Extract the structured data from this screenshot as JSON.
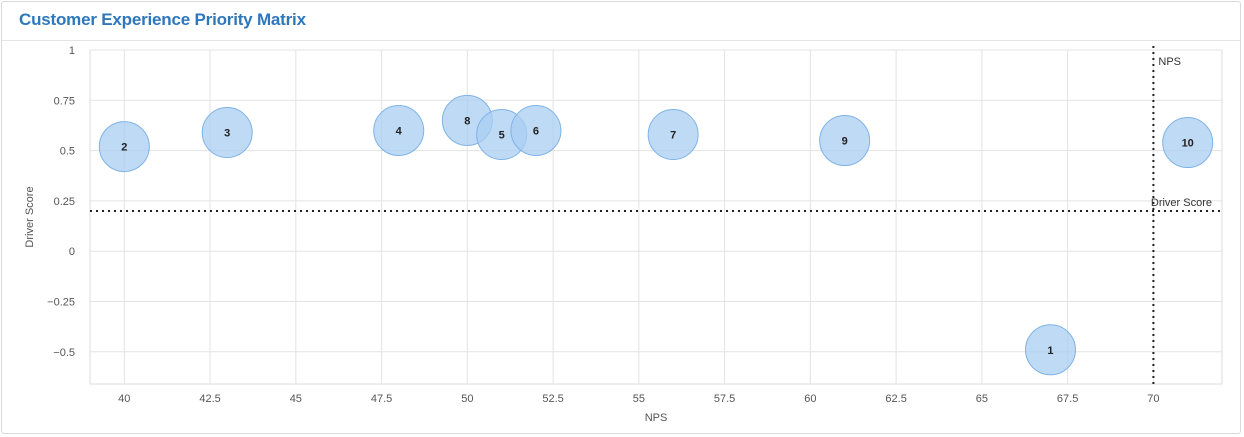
{
  "panel": {
    "title": "Customer Experience Priority Matrix"
  },
  "chart_data": {
    "type": "scatter",
    "variant": "bubble",
    "title": "Customer Experience Priority Matrix",
    "xlabel": "NPS",
    "ylabel": "Driver Score",
    "xlim": [
      39,
      72
    ],
    "ylim": [
      -0.66,
      1
    ],
    "x_ticks": [
      40,
      42.5,
      45,
      47.5,
      50,
      52.5,
      55,
      57.5,
      60,
      62.5,
      65,
      67.5,
      70
    ],
    "x_tick_labels": [
      "40",
      "42.5",
      "45",
      "47.5",
      "50",
      "52.5",
      "55",
      "57.5",
      "60",
      "62.5",
      "65",
      "67.5",
      "70"
    ],
    "y_ticks": [
      1,
      0.75,
      0.5,
      0.25,
      0,
      -0.25,
      -0.5
    ],
    "y_tick_labels": [
      "1",
      "0.75",
      "0.5",
      "0.25",
      "0",
      "−0.25",
      "−0.5"
    ],
    "grid": true,
    "bubble_color": "#a9cdf2",
    "bubble_edge_color": "#7fb3e6",
    "points": [
      {
        "label": "2",
        "x": 40,
        "y": 0.52
      },
      {
        "label": "3",
        "x": 43,
        "y": 0.59
      },
      {
        "label": "4",
        "x": 48,
        "y": 0.6
      },
      {
        "label": "8",
        "x": 50,
        "y": 0.65
      },
      {
        "label": "5",
        "x": 51,
        "y": 0.58
      },
      {
        "label": "6",
        "x": 52,
        "y": 0.6
      },
      {
        "label": "7",
        "x": 56,
        "y": 0.58
      },
      {
        "label": "9",
        "x": 61,
        "y": 0.55
      },
      {
        "label": "10",
        "x": 71,
        "y": 0.54
      },
      {
        "label": "1",
        "x": 67,
        "y": -0.49
      }
    ],
    "reference_lines": [
      {
        "axis": "x",
        "value": 70,
        "label": "NPS"
      },
      {
        "axis": "y",
        "value": 0.2,
        "label": "Driver Score"
      }
    ]
  }
}
